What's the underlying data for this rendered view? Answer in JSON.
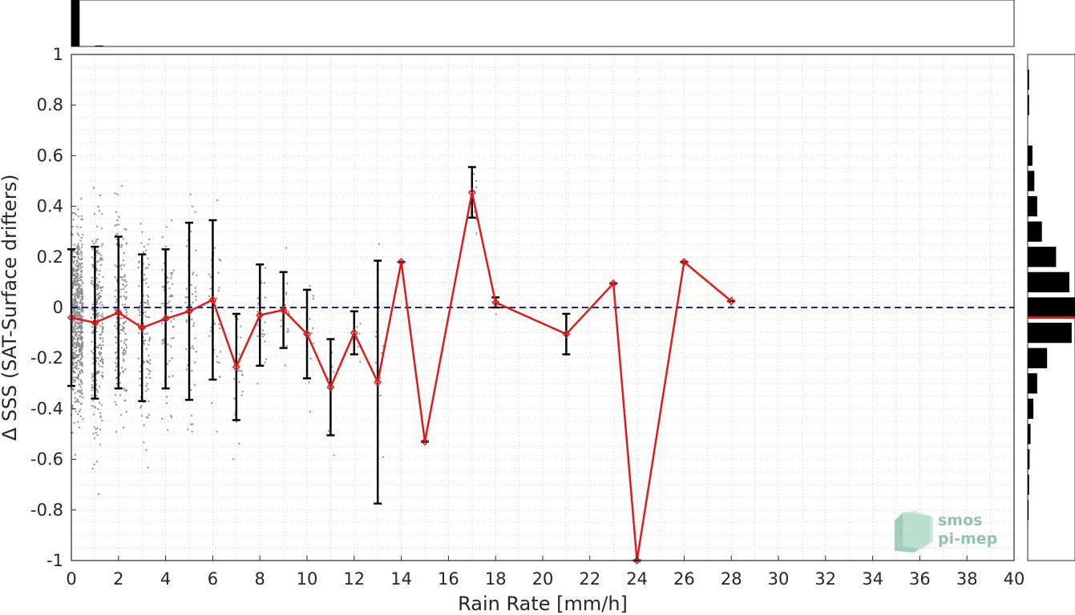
{
  "chart_data": {
    "type": "scatter",
    "xlabel": "Rain Rate [mm/h]",
    "ylabel": "Δ SSS (SAT-Surface drifters)",
    "xlim": [
      0,
      40
    ],
    "ylim": [
      -1,
      1
    ],
    "x_ticks": [
      "0",
      "2",
      "4",
      "6",
      "8",
      "10",
      "12",
      "14",
      "16",
      "18",
      "20",
      "22",
      "24",
      "26",
      "28",
      "30",
      "32",
      "34",
      "36",
      "38",
      "40"
    ],
    "y_ticks": [
      "1",
      "0.8",
      "0.6",
      "0.4",
      "0.2",
      "0",
      "-0.2",
      "-0.4",
      "-0.6",
      "-0.8",
      "-1"
    ],
    "grid": true,
    "reference_line": {
      "y": 0,
      "style": "dashed",
      "color": "#1f1fa8"
    },
    "series": [
      {
        "kind": "mean_with_std",
        "color": "#e01a1a",
        "x": [
          0,
          1,
          2,
          3,
          4,
          5,
          6,
          7,
          8,
          9,
          10,
          11,
          12,
          13,
          14,
          15,
          17,
          18,
          21,
          23,
          24,
          26,
          28
        ],
        "y": [
          -0.04,
          -0.06,
          -0.02,
          -0.08,
          -0.045,
          -0.015,
          0.03,
          -0.235,
          -0.03,
          -0.01,
          -0.105,
          -0.315,
          -0.1,
          -0.295,
          0.18,
          -0.53,
          0.455,
          0.02,
          -0.105,
          0.095,
          -1.0,
          0.18,
          0.025
        ],
        "std": [
          0.27,
          0.3,
          0.3,
          0.29,
          0.275,
          0.35,
          0.315,
          0.21,
          0.2,
          0.15,
          0.175,
          0.19,
          0.085,
          0.48,
          0,
          0,
          0.1,
          0.02,
          0.08,
          0,
          0,
          0,
          0
        ]
      },
      {
        "kind": "raw_samples",
        "color": "#8c8c8c",
        "density": "dense near 0 mm/h, sparse above 14 mm/h"
      }
    ],
    "top_histogram": {
      "description": "counts of samples per rain-rate bin",
      "relative_heights": [
        1.0,
        0.02
      ]
    },
    "right_histogram": {
      "description": "counts of samples per Δ SSS bin",
      "bins_y": [
        0.9,
        0.8,
        0.6,
        0.5,
        0.4,
        0.3,
        0.2,
        0.1,
        0.0,
        -0.1,
        -0.2,
        -0.3,
        -0.4,
        -0.5,
        -0.6,
        -0.7,
        -0.8
      ],
      "relative_counts": [
        0.03,
        0.03,
        0.1,
        0.14,
        0.2,
        0.3,
        0.6,
        0.88,
        1.0,
        0.93,
        0.41,
        0.2,
        0.12,
        0.06,
        0.04,
        0.03,
        0.02
      ],
      "mean_marker_y": -0.04,
      "mean_marker_color": "#e01a1a"
    }
  },
  "logo": {
    "line1": "smos",
    "line2": "pi-mep"
  },
  "colors": {
    "mean_line": "#e01a1a",
    "error_bars": "#000000",
    "zero_line": "#1f1fa8",
    "samples": "#8c8c8c",
    "grid": "#c8c8c8",
    "logo": "#7fb9a0"
  }
}
